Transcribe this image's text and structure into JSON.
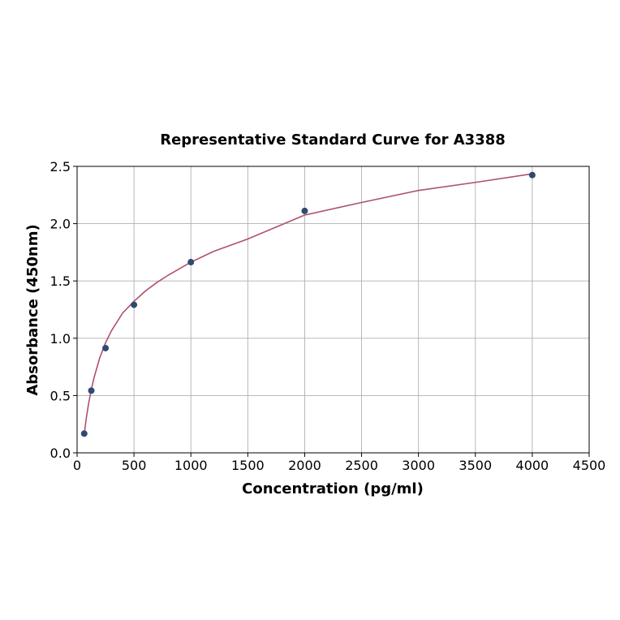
{
  "chart_data": {
    "type": "scatter",
    "title": "Representative Standard Curve for A3388",
    "xlabel": "Concentration (pg/ml)",
    "ylabel": "Absorbance (450nm)",
    "xlim": [
      0,
      4500
    ],
    "ylim": [
      0,
      2.5
    ],
    "xticks": [
      "0",
      "500",
      "1000",
      "1500",
      "2000",
      "2500",
      "3000",
      "3500",
      "4000",
      "4500"
    ],
    "yticks": [
      "0.0",
      "0.5",
      "1.0",
      "1.5",
      "2.0",
      "2.5"
    ],
    "grid": true,
    "series": [
      {
        "type": "scatter",
        "x": [
          62.5,
          125,
          250,
          500,
          1000,
          2000,
          4000
        ],
        "y": [
          0.168,
          0.543,
          0.914,
          1.292,
          1.664,
          2.111,
          2.424
        ]
      },
      {
        "type": "line",
        "x": [
          62.5,
          80,
          100,
          125,
          150,
          200,
          250,
          300,
          400,
          500,
          600,
          700,
          800,
          1000,
          1200,
          1500,
          2000,
          2500,
          3000,
          3500,
          4000
        ],
        "y": [
          0.158,
          0.297,
          0.423,
          0.555,
          0.659,
          0.832,
          0.96,
          1.062,
          1.22,
          1.322,
          1.412,
          1.486,
          1.55,
          1.664,
          1.758,
          1.866,
          2.075,
          2.185,
          2.29,
          2.36,
          2.435
        ]
      }
    ],
    "colors": {
      "points": "#2e4a72",
      "curve": "#b0506e",
      "grid": "#b0b0b0",
      "axis": "#000000"
    }
  }
}
